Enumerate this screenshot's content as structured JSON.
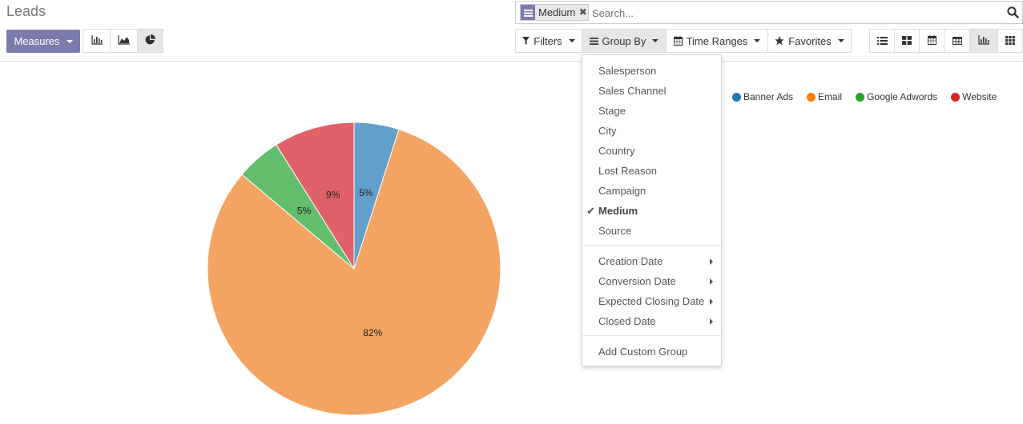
{
  "page": {
    "title": "Leads"
  },
  "search": {
    "facet_label": "Medium",
    "placeholder": "Search..."
  },
  "toolbar": {
    "measures_label": "Measures",
    "filters_label": "Filters",
    "group_by_label": "Group By",
    "time_ranges_label": "Time Ranges",
    "favorites_label": "Favorites"
  },
  "group_by_menu": {
    "items": [
      "Salesperson",
      "Sales Channel",
      "Stage",
      "City",
      "Country",
      "Lost Reason",
      "Campaign",
      "Medium",
      "Source"
    ],
    "selected": "Medium",
    "date_items": [
      "Creation Date",
      "Conversion Date",
      "Expected Closing Date",
      "Closed Date"
    ],
    "custom_label": "Add Custom Group"
  },
  "colors": {
    "accent": "#7c7bad",
    "banner_ads": "#1f77b4",
    "email": "#ff7f0e",
    "google_adwords": "#2ca02c",
    "website": "#d62728"
  },
  "chart_data": {
    "type": "pie",
    "categories": [
      "Banner Ads",
      "Email",
      "Google Adwords",
      "Website"
    ],
    "values": [
      5,
      82,
      5,
      9
    ],
    "labels": [
      "5%",
      "82%",
      "5%",
      "9%"
    ],
    "slice_colors": [
      "#629fcb",
      "#f4a462",
      "#62be6d",
      "#e06169"
    ],
    "legend_position": "top-right"
  }
}
